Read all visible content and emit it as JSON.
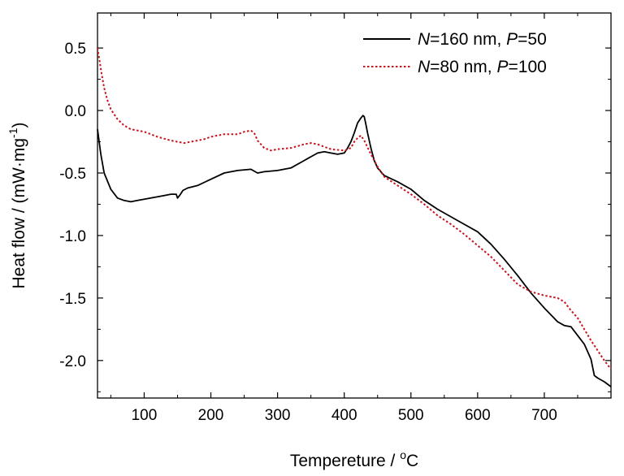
{
  "chart_data": {
    "type": "line",
    "title": "",
    "xlabel": {
      "prefix": "Tempereture / ",
      "sup": "o",
      "suffix": "C"
    },
    "ylabel": {
      "prefix": "Heat flow / (mW·mg",
      "sup": "-1",
      "suffix": ")"
    },
    "xlim": [
      30,
      800
    ],
    "ylim": [
      -2.3,
      0.78
    ],
    "xticks": [
      100,
      200,
      300,
      400,
      500,
      600,
      700
    ],
    "xtick_labels": [
      "100",
      "200",
      "300",
      "400",
      "500",
      "600",
      "700"
    ],
    "yticks": [
      0.5,
      0.0,
      -0.5,
      -1.0,
      -1.5,
      -2.0
    ],
    "ytick_labels": [
      "0.5",
      "0.0",
      "-0.5",
      "-1.0",
      "-1.5",
      "-2.0"
    ],
    "grid": false,
    "legend_position": "top-right",
    "series": [
      {
        "name": {
          "n": "N",
          "rest1": "=160 nm, ",
          "p": "P",
          "rest2": "=50"
        },
        "color": "#000000",
        "dash": "solid",
        "x": [
          30,
          35,
          40,
          50,
          60,
          70,
          80,
          90,
          100,
          110,
          120,
          130,
          140,
          148,
          150,
          153,
          158,
          165,
          180,
          200,
          220,
          240,
          260,
          270,
          280,
          300,
          320,
          340,
          350,
          360,
          370,
          380,
          390,
          400,
          405,
          410,
          415,
          420,
          425,
          428,
          430,
          432,
          435,
          440,
          445,
          450,
          460,
          480,
          500,
          520,
          540,
          560,
          580,
          600,
          620,
          640,
          660,
          680,
          700,
          720,
          730,
          740,
          760,
          770,
          775,
          780,
          790,
          800
        ],
        "y": [
          -0.15,
          -0.35,
          -0.5,
          -0.63,
          -0.7,
          -0.72,
          -0.73,
          -0.72,
          -0.71,
          -0.7,
          -0.69,
          -0.68,
          -0.67,
          -0.67,
          -0.7,
          -0.68,
          -0.64,
          -0.62,
          -0.6,
          -0.55,
          -0.5,
          -0.48,
          -0.47,
          -0.5,
          -0.49,
          -0.48,
          -0.46,
          -0.4,
          -0.37,
          -0.34,
          -0.33,
          -0.34,
          -0.35,
          -0.34,
          -0.3,
          -0.25,
          -0.18,
          -0.1,
          -0.06,
          -0.04,
          -0.05,
          -0.1,
          -0.18,
          -0.3,
          -0.4,
          -0.46,
          -0.52,
          -0.57,
          -0.63,
          -0.72,
          -0.79,
          -0.85,
          -0.91,
          -0.97,
          -1.07,
          -1.19,
          -1.32,
          -1.46,
          -1.58,
          -1.69,
          -1.72,
          -1.73,
          -1.87,
          -1.99,
          -2.12,
          -2.14,
          -2.17,
          -2.21
        ]
      },
      {
        "name": {
          "n": "N",
          "rest1": "=80 nm, ",
          "p": "P",
          "rest2": "=100"
        },
        "color": "#c8141e",
        "dash": "dotted",
        "x": [
          30,
          33,
          36,
          40,
          45,
          50,
          60,
          70,
          80,
          100,
          120,
          140,
          160,
          170,
          180,
          190,
          200,
          210,
          220,
          240,
          250,
          260,
          265,
          270,
          280,
          290,
          300,
          320,
          340,
          350,
          360,
          380,
          400,
          410,
          415,
          420,
          425,
          430,
          440,
          450,
          460,
          480,
          500,
          520,
          540,
          560,
          580,
          600,
          620,
          640,
          660,
          680,
          700,
          720,
          730,
          740,
          750,
          760,
          770,
          780,
          790,
          800
        ],
        "y": [
          0.5,
          0.4,
          0.3,
          0.18,
          0.08,
          0.01,
          -0.07,
          -0.12,
          -0.15,
          -0.17,
          -0.21,
          -0.24,
          -0.26,
          -0.25,
          -0.24,
          -0.23,
          -0.21,
          -0.2,
          -0.19,
          -0.19,
          -0.17,
          -0.16,
          -0.18,
          -0.24,
          -0.3,
          -0.32,
          -0.31,
          -0.3,
          -0.27,
          -0.26,
          -0.27,
          -0.31,
          -0.32,
          -0.3,
          -0.25,
          -0.22,
          -0.2,
          -0.24,
          -0.35,
          -0.45,
          -0.53,
          -0.6,
          -0.67,
          -0.75,
          -0.84,
          -0.91,
          -0.99,
          -1.08,
          -1.17,
          -1.28,
          -1.39,
          -1.45,
          -1.48,
          -1.5,
          -1.53,
          -1.6,
          -1.66,
          -1.75,
          -1.84,
          -1.92,
          -2.0,
          -2.07
        ]
      }
    ]
  }
}
